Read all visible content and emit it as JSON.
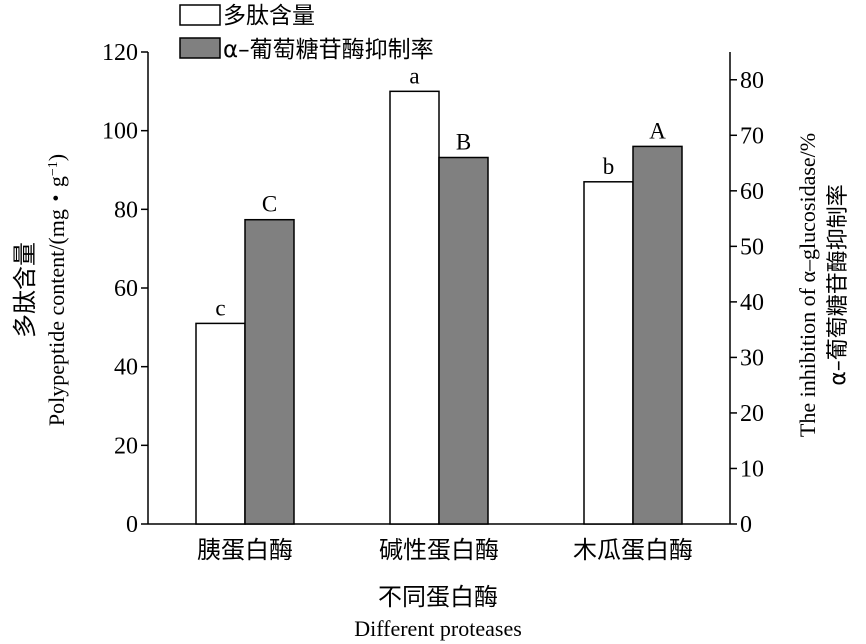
{
  "chart_data": {
    "type": "bar",
    "categories": [
      "胰蛋白酶",
      "碱性蛋白酶",
      "木瓜蛋白酶"
    ],
    "series": [
      {
        "name": "多肽含量",
        "axis": "left",
        "fill": "#ffffff",
        "values": [
          51,
          110,
          87
        ],
        "labels": [
          "c",
          "a",
          "b"
        ]
      },
      {
        "name": "α–葡萄糖苷酶抑制率",
        "axis": "right",
        "fill": "#808080",
        "values": [
          54.8,
          66,
          68
        ],
        "labels": [
          "C",
          "B",
          "A"
        ]
      }
    ],
    "y_left": {
      "label_cn": "多肽含量",
      "label_en_main": "Polypeptide content/(mg・g",
      "label_en_sup": "−1",
      "label_en_end": ")",
      "lim": [
        0,
        120
      ],
      "ticks": [
        0,
        20,
        40,
        60,
        80,
        100,
        120
      ]
    },
    "y_right": {
      "label_en": "The inhibition of α–glucosidase/%",
      "label_cn": "α–葡萄糖苷酶抑制率",
      "lim": [
        0,
        85
      ],
      "ticks": [
        0,
        10,
        20,
        30,
        40,
        50,
        60,
        70,
        80
      ]
    },
    "x_label_cn": "不同蛋白酶",
    "x_label_en": "Different proteases",
    "grid": false,
    "legend": "top-left"
  }
}
